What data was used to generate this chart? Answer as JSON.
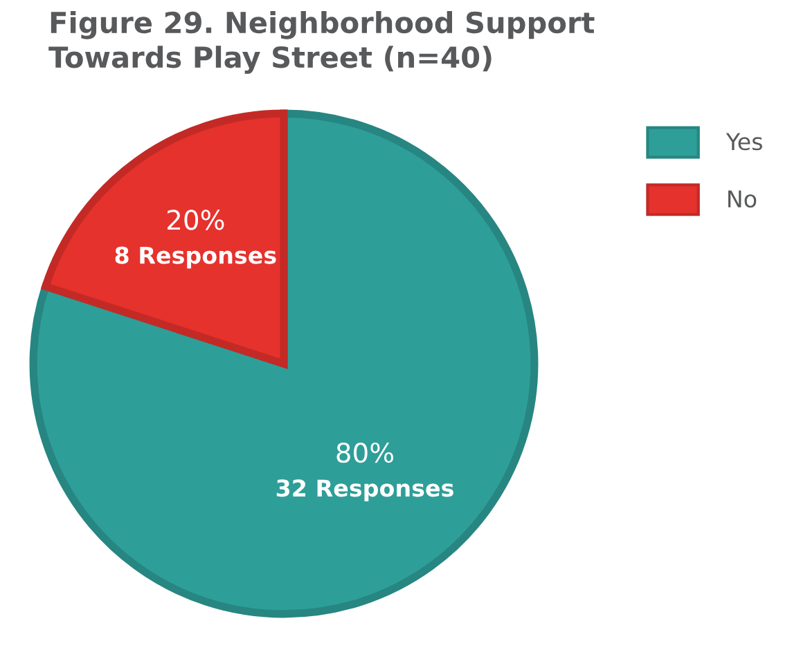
{
  "chart_data": {
    "type": "pie",
    "title": "Figure 29. Neighborhood Support\nTowards Play Street (n=40)",
    "categories": [
      "Yes",
      "No"
    ],
    "values": [
      80,
      20
    ],
    "colors": [
      "#2e9e98",
      "#e5322d"
    ],
    "value_labels": [
      "80%",
      "20%"
    ],
    "annotations": [
      {
        "text": "32 Responses",
        "x": "Yes"
      },
      {
        "text": "8 Responses",
        "x": "No"
      }
    ],
    "legend": "top right"
  }
}
